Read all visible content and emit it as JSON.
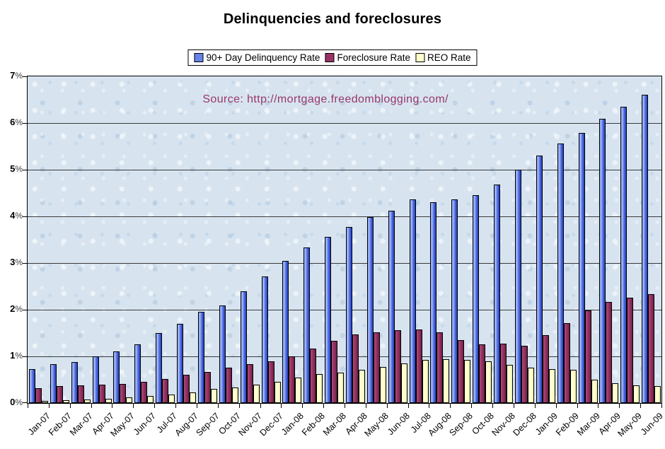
{
  "page": {
    "title": "Delinquencies and foreclosures",
    "source_note": "Source: http://mortgage.freedomblogging.com/"
  },
  "legend": {
    "items": [
      {
        "label": "90+ Day Delinquency Rate",
        "swatch_color": "#6583e8"
      },
      {
        "label": "Foreclosure Rate",
        "swatch_color": "#993366"
      },
      {
        "label": "REO Rate",
        "swatch_color": "#ffffcc"
      }
    ]
  },
  "chart_data": {
    "type": "bar",
    "title": "Delinquencies and foreclosures",
    "annotation": "Source: http://mortgage.freedomblogging.com/",
    "xlabel": "",
    "ylabel": "",
    "ylim": [
      0,
      7
    ],
    "ytick_step": 1,
    "ytick_suffix": "%",
    "grid": true,
    "legend_position": "top",
    "plot_background": "#d7e4f0",
    "categories": [
      "Jan-07",
      "Feb-07",
      "Mar-07",
      "Apr-07",
      "May-07",
      "Jun-07",
      "Jul-07",
      "Aug-07",
      "Sep-07",
      "Oct-07",
      "Nov-07",
      "Dec-07",
      "Jan-08",
      "Feb-08",
      "Mar-08",
      "Apr-08",
      "May-08",
      "Jun-08",
      "Jul-08",
      "Aug-08",
      "Sep-08",
      "Oct-08",
      "Nov-08",
      "Dec-08",
      "Jan-09",
      "Feb-09",
      "Mar-09",
      "Apr-09",
      "May-09",
      "Jun-09"
    ],
    "series": [
      {
        "name": "90+ Day Delinquency Rate",
        "color": "#4e6ade",
        "values": [
          0.72,
          0.83,
          0.88,
          1.0,
          1.1,
          1.26,
          1.5,
          1.7,
          1.96,
          2.09,
          2.4,
          2.71,
          3.04,
          3.34,
          3.56,
          3.77,
          3.98,
          4.12,
          4.37,
          4.31,
          4.37,
          4.45,
          4.68,
          5.0,
          5.31,
          5.56,
          5.79,
          6.09,
          6.35,
          6.61
        ]
      },
      {
        "name": "Foreclosure Rate",
        "color": "#993366",
        "values": [
          0.32,
          0.36,
          0.38,
          0.4,
          0.41,
          0.46,
          0.51,
          0.6,
          0.66,
          0.76,
          0.83,
          0.9,
          1.0,
          1.16,
          1.33,
          1.47,
          1.52,
          1.56,
          1.58,
          1.52,
          1.35,
          1.25,
          1.28,
          1.23,
          1.45,
          1.71,
          1.98,
          2.16,
          2.26,
          2.33
        ]
      },
      {
        "name": "REO Rate",
        "color": "#ffffcc",
        "values": [
          0.05,
          0.06,
          0.08,
          0.09,
          0.12,
          0.15,
          0.18,
          0.23,
          0.3,
          0.34,
          0.4,
          0.46,
          0.55,
          0.62,
          0.65,
          0.71,
          0.78,
          0.85,
          0.93,
          0.94,
          0.93,
          0.89,
          0.82,
          0.76,
          0.73,
          0.71,
          0.5,
          0.43,
          0.38,
          0.37
        ]
      }
    ]
  }
}
